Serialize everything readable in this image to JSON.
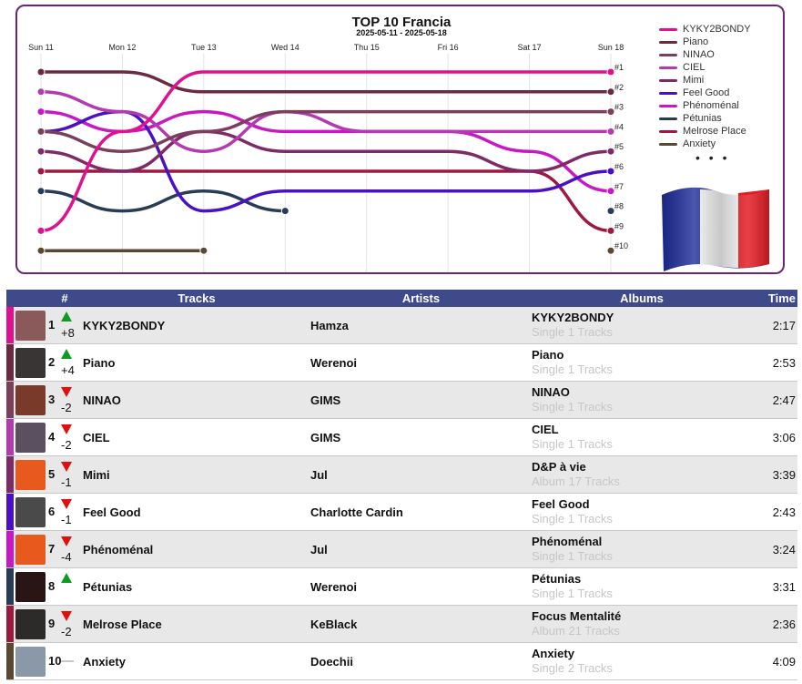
{
  "chart_data": {
    "type": "line",
    "title": "TOP 10 Francia",
    "subtitle": "2025-05-11 - 2025-05-18",
    "days": [
      "Sun 11",
      "Mon 12",
      "Tue 13",
      "Wed 14",
      "Thu 15",
      "Fri 16",
      "Sat 17",
      "Sun 18"
    ],
    "rank_labels": [
      "#1",
      "#2",
      "#3",
      "#4",
      "#5",
      "#6",
      "#7",
      "#8",
      "#9",
      "#10"
    ],
    "y_axis": "rank (1 top, 10 bottom)",
    "series": [
      {
        "name": "KYKY2BONDY",
        "color": "#e0118f",
        "ranks": [
          9,
          4,
          1,
          1,
          1,
          1,
          1,
          1
        ]
      },
      {
        "name": "Piano",
        "color": "#6b2a3e",
        "ranks": [
          1,
          1,
          2,
          2,
          2,
          2,
          2,
          2
        ]
      },
      {
        "name": "NINAO",
        "color": "#7a3f5a",
        "ranks": [
          4,
          5,
          4,
          3,
          3,
          3,
          3,
          3
        ]
      },
      {
        "name": "CIEL",
        "color": "#b23bb0",
        "ranks": [
          2,
          3,
          5,
          3,
          4,
          4,
          4,
          4
        ]
      },
      {
        "name": "Mimi",
        "color": "#7e2a67",
        "ranks": [
          5,
          6,
          4,
          5,
          5,
          5,
          6,
          5
        ]
      },
      {
        "name": "Feel Good",
        "color": "#4812c4",
        "ranks": [
          4,
          3,
          8,
          7,
          7,
          7,
          7,
          6
        ]
      },
      {
        "name": "Phénoménal",
        "color": "#c818c6",
        "ranks": [
          3,
          4,
          3,
          4,
          4,
          4,
          5,
          7
        ]
      },
      {
        "name": "Pétunias",
        "color": "#283c58",
        "ranks": [
          7,
          8,
          7,
          8,
          null,
          null,
          null,
          8
        ]
      },
      {
        "name": "Melrose Place",
        "color": "#9c1a40",
        "ranks": [
          6,
          6,
          6,
          6,
          6,
          6,
          6,
          9
        ]
      },
      {
        "name": "Anxiety",
        "color": "#5a4930",
        "ranks": [
          10,
          10,
          10,
          null,
          null,
          null,
          null,
          10
        ]
      }
    ],
    "legend_position": "right",
    "legend_more": "• • •"
  },
  "colors": {
    "panel_border": "#6a2675",
    "table_header_bg": "#3f4a8a",
    "up_arrow": "#0f9a20",
    "down_arrow": "#e01010"
  },
  "table": {
    "headers": {
      "rank": "#",
      "tracks": "Tracks",
      "artists": "Artists",
      "albums": "Albums",
      "time": "Time"
    },
    "rows": [
      {
        "rank": "1",
        "trend": "up",
        "change": "+8",
        "track": "KYKY2BONDY",
        "artist": "Hamza",
        "album": "KYKY2BONDY",
        "album_meta": "Single 1 Tracks",
        "time": "2:17",
        "color": "#e0118f",
        "thumb": "#8a5a5a"
      },
      {
        "rank": "2",
        "trend": "up",
        "change": "+4",
        "track": "Piano",
        "artist": "Werenoi",
        "album": "Piano",
        "album_meta": "Single 1 Tracks",
        "time": "2:53",
        "color": "#6b2a3e",
        "thumb": "#3a3535"
      },
      {
        "rank": "3",
        "trend": "down",
        "change": "-2",
        "track": "NINAO",
        "artist": "GIMS",
        "album": "NINAO",
        "album_meta": "Single 1 Tracks",
        "time": "2:47",
        "color": "#7a3f5a",
        "thumb": "#7a3a2a"
      },
      {
        "rank": "4",
        "trend": "down",
        "change": "-2",
        "track": "CIEL",
        "artist": "GIMS",
        "album": "CIEL",
        "album_meta": "Single 1 Tracks",
        "time": "3:06",
        "color": "#b23bb0",
        "thumb": "#5a5060"
      },
      {
        "rank": "5",
        "trend": "down",
        "change": "-1",
        "track": "Mimi",
        "artist": "Jul",
        "album": "D&P à vie",
        "album_meta": "Album 17 Tracks",
        "time": "3:39",
        "color": "#7e2a67",
        "thumb": "#e8591e"
      },
      {
        "rank": "6",
        "trend": "down",
        "change": "-1",
        "track": "Feel Good",
        "artist": "Charlotte Cardin",
        "album": "Feel Good",
        "album_meta": "Single 1 Tracks",
        "time": "2:43",
        "color": "#4812c4",
        "thumb": "#4a4a4a"
      },
      {
        "rank": "7",
        "trend": "down",
        "change": "-4",
        "track": "Phénoménal",
        "artist": "Jul",
        "album": "Phénoménal",
        "album_meta": "Single 1 Tracks",
        "time": "3:24",
        "color": "#c818c6",
        "thumb": "#e8591e"
      },
      {
        "rank": "8",
        "trend": "up",
        "change": "",
        "track": "Pétunias",
        "artist": "Werenoi",
        "album": "Pétunias",
        "album_meta": "Single 1 Tracks",
        "time": "3:31",
        "color": "#283c58",
        "thumb": "#2a1515"
      },
      {
        "rank": "9",
        "trend": "down",
        "change": "-2",
        "track": "Melrose Place",
        "artist": "KeBlack",
        "album": "Focus Mentalité",
        "album_meta": "Album 21 Tracks",
        "time": "2:36",
        "color": "#9c1a40",
        "thumb": "#2d2a2a"
      },
      {
        "rank": "10",
        "trend": "same",
        "change": "",
        "track": "Anxiety",
        "artist": "Doechii",
        "album": "Anxiety",
        "album_meta": "Single 2 Tracks",
        "time": "4:09",
        "color": "#5a4930",
        "thumb": "#8a98a8"
      }
    ]
  }
}
